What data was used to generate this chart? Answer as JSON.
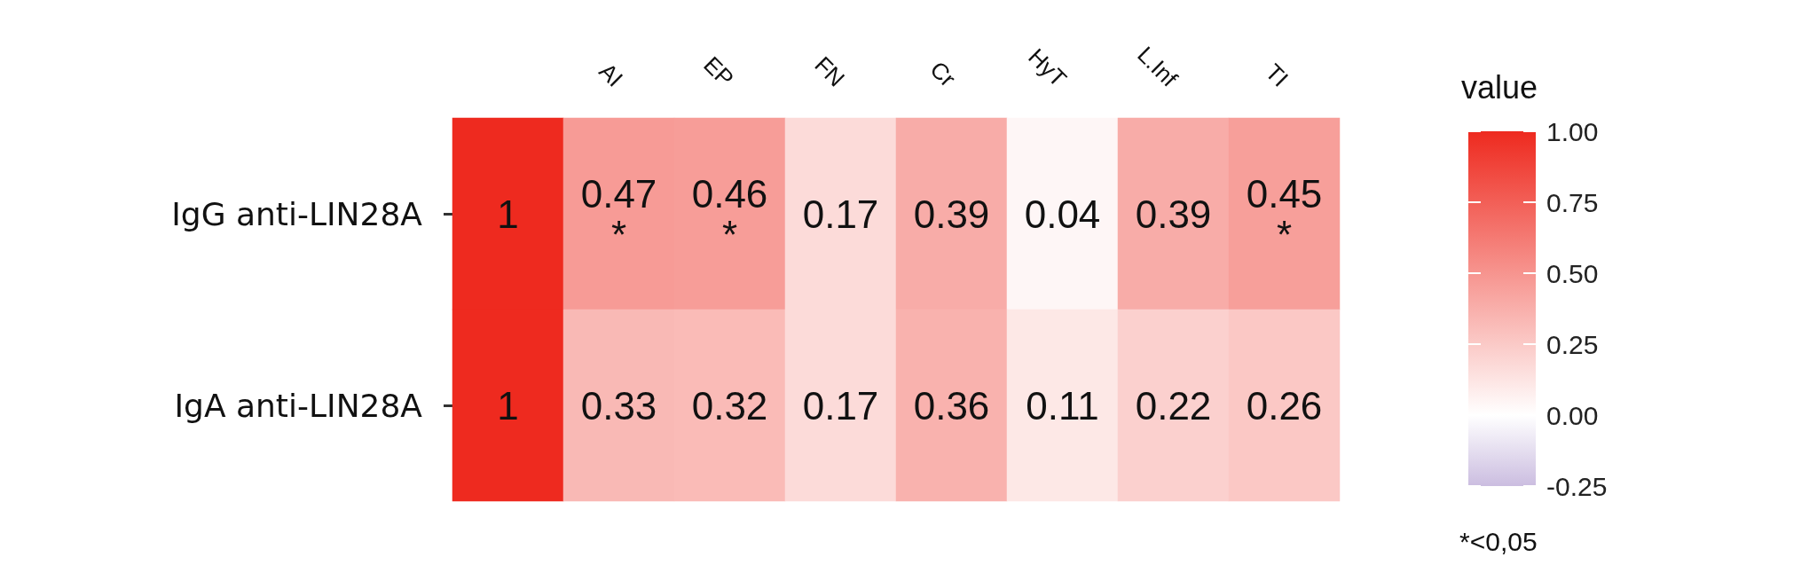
{
  "chart_data": {
    "type": "heatmap",
    "categories": [
      null,
      "AI",
      "EP",
      "FN",
      "Cr",
      "HyT",
      "L.Inf",
      "TI"
    ],
    "y_categories": [
      "IgG anti-LIN28A",
      "IgA anti-LIN28A"
    ],
    "cells": [
      [
        1,
        0.47,
        0.46,
        0.17,
        0.39,
        0.04,
        0.39,
        0.45
      ],
      [
        1,
        0.33,
        0.32,
        0.17,
        0.36,
        0.11,
        0.22,
        0.26
      ]
    ],
    "cell_labels": [
      [
        "1",
        "0.47\n*",
        "0.46\n*",
        "0.17",
        "0.39",
        "0.04",
        "0.39",
        "0.45\n*"
      ],
      [
        "1",
        "0.33",
        "0.32",
        "0.17",
        "0.36",
        "0.11",
        "0.22",
        "0.26"
      ]
    ],
    "clabel": "value",
    "clim": [
      -0.25,
      1
    ],
    "cticks": [
      {
        "value": -0.25,
        "label": "-0.25"
      },
      {
        "value": 0,
        "label": "0.00"
      },
      {
        "value": 0.25,
        "label": "0.25"
      },
      {
        "value": 0.5,
        "label": "0.50"
      },
      {
        "value": 0.75,
        "label": "0.75"
      },
      {
        "value": 1,
        "label": "1.00"
      }
    ],
    "colors": [
      "#cbbde0",
      "#ffffff",
      "#ee2a1f"
    ],
    "annotations": [
      "*<0,05"
    ]
  }
}
